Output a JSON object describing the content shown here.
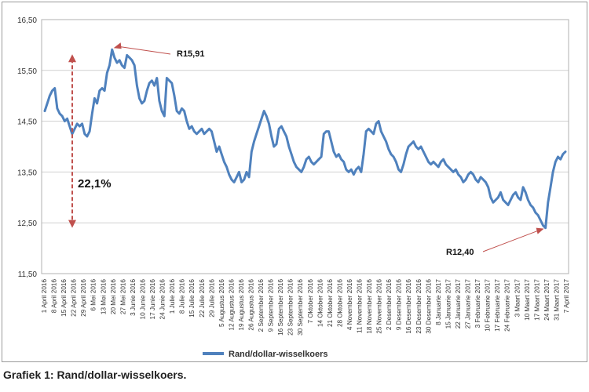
{
  "caption": "Grafiek 1: Rand/dollar-wisselkoers.",
  "chart_data": {
    "type": "line",
    "title": "",
    "xlabel": "",
    "ylabel": "",
    "ylim": [
      11.5,
      16.5
    ],
    "yticks": [
      "11,50",
      "12,50",
      "13,50",
      "14,50",
      "15,50",
      "16,50"
    ],
    "ytick_values": [
      11.5,
      12.5,
      13.5,
      14.5,
      15.5,
      16.5
    ],
    "grid": "horizontal",
    "legend_position": "bottom",
    "x_tick_labels": [
      "1 April 2016",
      "8 April 2016",
      "15 April 2016",
      "22 April 2016",
      "29 April 2016",
      "6 Mei 2016",
      "13 Mei 2016",
      "20 Mei 2016",
      "27 Mei 2016",
      "3 Junie 2016",
      "10 Junie 2016",
      "17 Junie 2016",
      "24 Junie 2016",
      "1 Julie 2016",
      "8 Julie 2016",
      "15 Julie 2016",
      "22 Julie 2016",
      "29 Julie 2016",
      "5 Augustus 2016",
      "12 Augustus 2016",
      "19 Augustus 2016",
      "26 Augustus 2016",
      "2 September 2016",
      "9 September 2016",
      "16 September 2016",
      "23 September 2016",
      "30 September 2016",
      "7 Oktober 2016",
      "14 Oktober 2016",
      "21 Oktober 2016",
      "28 Oktober 2016",
      "4 November 2016",
      "11 November 2016",
      "18 November 2016",
      "25 November 2016",
      "2 Desember 2016",
      "9 Desember 2016",
      "16 Desember 2016",
      "23 Desember 2016",
      "30 Desember 2016",
      "8 Januarie 2017",
      "15 Januarie 2017",
      "22 Januarie 2017",
      "27 Januarie 2017",
      "3 Februarie 2017",
      "10 Februarie 2017",
      "17 Februarie 2017",
      "24 Februarie 2017",
      "3 Maart 2017",
      "10 Maart 2017",
      "17 Maart 2017",
      "24 Maart 2017",
      "31 Maart 2017",
      "7 April 2017"
    ],
    "series": [
      {
        "name": "Rand/dollar-wisselkoers",
        "color": "#4f81bd",
        "values": [
          14.7,
          14.85,
          15.0,
          15.1,
          15.15,
          14.75,
          14.65,
          14.6,
          14.5,
          14.55,
          14.4,
          14.25,
          14.35,
          14.45,
          14.4,
          14.45,
          14.25,
          14.2,
          14.3,
          14.65,
          14.95,
          14.85,
          15.1,
          15.15,
          15.1,
          15.45,
          15.6,
          15.91,
          15.75,
          15.65,
          15.7,
          15.6,
          15.55,
          15.8,
          15.75,
          15.7,
          15.6,
          15.2,
          14.95,
          14.85,
          14.9,
          15.1,
          15.25,
          15.3,
          15.2,
          15.35,
          14.9,
          14.7,
          14.6,
          15.35,
          15.3,
          15.25,
          15.0,
          14.7,
          14.65,
          14.75,
          14.7,
          14.5,
          14.35,
          14.4,
          14.3,
          14.25,
          14.3,
          14.35,
          14.25,
          14.3,
          14.35,
          14.3,
          14.1,
          13.9,
          14.0,
          13.85,
          13.7,
          13.6,
          13.45,
          13.35,
          13.3,
          13.4,
          13.5,
          13.3,
          13.35,
          13.5,
          13.4,
          13.9,
          14.1,
          14.25,
          14.4,
          14.55,
          14.7,
          14.6,
          14.45,
          14.2,
          14.0,
          14.05,
          14.35,
          14.4,
          14.3,
          14.2,
          14.0,
          13.85,
          13.7,
          13.6,
          13.55,
          13.5,
          13.6,
          13.75,
          13.8,
          13.7,
          13.65,
          13.7,
          13.75,
          13.8,
          14.25,
          14.3,
          14.3,
          14.1,
          13.9,
          13.8,
          13.85,
          13.75,
          13.7,
          13.55,
          13.5,
          13.55,
          13.45,
          13.55,
          13.6,
          13.5,
          13.85,
          14.3,
          14.35,
          14.3,
          14.25,
          14.45,
          14.5,
          14.3,
          14.2,
          14.1,
          13.95,
          13.85,
          13.8,
          13.7,
          13.55,
          13.5,
          13.65,
          13.85,
          14.0,
          14.05,
          14.1,
          14.0,
          13.95,
          14.0,
          13.9,
          13.8,
          13.7,
          13.65,
          13.7,
          13.65,
          13.6,
          13.7,
          13.75,
          13.65,
          13.6,
          13.55,
          13.5,
          13.55,
          13.45,
          13.4,
          13.3,
          13.35,
          13.45,
          13.5,
          13.45,
          13.35,
          13.3,
          13.4,
          13.35,
          13.3,
          13.2,
          13.0,
          12.9,
          12.95,
          13.0,
          13.1,
          12.95,
          12.9,
          12.85,
          12.95,
          13.05,
          13.1,
          13.0,
          12.95,
          13.2,
          13.1,
          12.95,
          12.85,
          12.8,
          12.7,
          12.65,
          12.55,
          12.45,
          12.4,
          12.9,
          13.2,
          13.5,
          13.7,
          13.8,
          13.75,
          13.85,
          13.9
        ]
      }
    ],
    "annotations": [
      {
        "text": "R15,91",
        "at_value": 15.91
      },
      {
        "text": "R12,40",
        "at_value": 12.4
      },
      {
        "text": "22,1%"
      }
    ]
  }
}
